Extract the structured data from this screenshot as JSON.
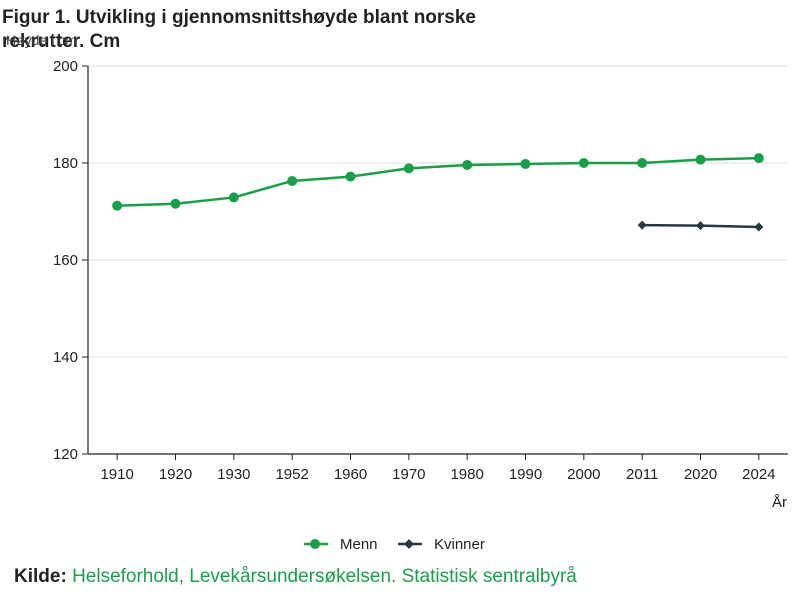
{
  "chart_data": {
    "type": "line",
    "title": "Figur 1. Utvikling i gjennomsnittshøyde blant norske rekrutter. Cm",
    "ylabel": "Høyde i cm",
    "xlabel": "År",
    "categories": [
      "1910",
      "1920",
      "1930",
      "1952",
      "1960",
      "1970",
      "1980",
      "1990",
      "2000",
      "2011",
      "2020",
      "2024"
    ],
    "ylim": [
      120,
      200
    ],
    "yticks": [
      120,
      140,
      160,
      180,
      200
    ],
    "grid": true,
    "legend_position": "bottom",
    "series": [
      {
        "name": "Menn",
        "color": "#1a9e4a",
        "marker": "circle",
        "values": [
          171.2,
          171.6,
          172.9,
          176.3,
          177.2,
          178.9,
          179.6,
          179.8,
          180.0,
          180.0,
          180.7,
          181.0
        ]
      },
      {
        "name": "Kvinner",
        "color": "#273a40",
        "marker": "diamond",
        "values": [
          null,
          null,
          null,
          null,
          null,
          null,
          null,
          null,
          null,
          167.2,
          167.1,
          166.8
        ]
      }
    ]
  },
  "source": {
    "label": "Kilde:",
    "text": "Helseforhold, Levekårsundersøkelsen. Statistisk sentralbyrå"
  }
}
